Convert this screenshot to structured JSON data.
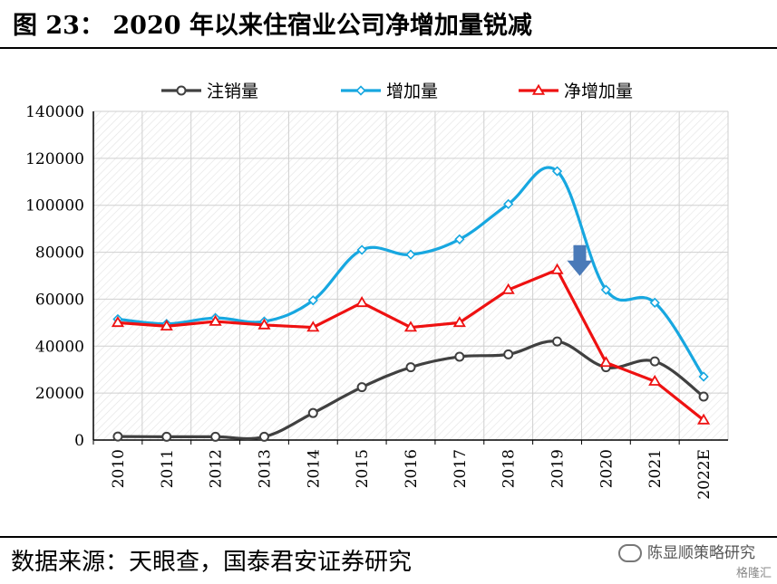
{
  "header": {
    "title": "图 23：   2020 年以来住宿业公司净增加量锐减"
  },
  "footer": {
    "source": "数据来源：天眼查，国泰君安证券研究",
    "watermark": "陈显顺策略研究",
    "watermark_sub": "格隆汇"
  },
  "colors": {
    "cancel": "#404040",
    "add": "#17a7e0",
    "net": "#ee1111",
    "arrow": "#4a7ab8",
    "grid": "#cfcfcf"
  },
  "chart_data": {
    "type": "line",
    "categories": [
      "2010",
      "2011",
      "2012",
      "2013",
      "2014",
      "2015",
      "2016",
      "2017",
      "2018",
      "2019",
      "2020",
      "2021",
      "2022E"
    ],
    "ylim": [
      0,
      140000
    ],
    "yticks": [
      "0",
      "20000",
      "40000",
      "60000",
      "80000",
      "100000",
      "120000",
      "140000"
    ],
    "legend_position": "top",
    "grid": true,
    "annotation": "down-arrow",
    "series": [
      {
        "name": "注销量",
        "marker": "circle",
        "values": [
          1500,
          1400,
          1400,
          1400,
          11500,
          22500,
          31000,
          35500,
          36500,
          42000,
          31000,
          33500,
          18500
        ]
      },
      {
        "name": "增加量",
        "marker": "diamond",
        "values": [
          51500,
          49500,
          52000,
          50500,
          59500,
          81000,
          79000,
          85500,
          100500,
          114500,
          64000,
          58500,
          27000
        ]
      },
      {
        "name": "净增加量",
        "marker": "triangle",
        "values": [
          50000,
          48500,
          50500,
          49000,
          48000,
          58500,
          48000,
          50000,
          64000,
          72500,
          33000,
          25000,
          8500
        ]
      }
    ]
  }
}
